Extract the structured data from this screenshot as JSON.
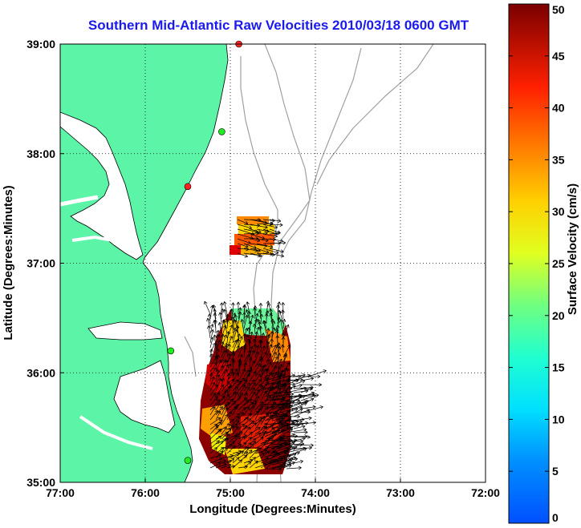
{
  "title": "Southern Mid-Atlantic Raw Velocities 2010/03/18 0600 GMT",
  "map": {
    "xlabel": "Longitude (Degrees:Minutes)",
    "ylabel": "Latitude (Degrees:Minutes)",
    "x_ticks": [
      "77:00",
      "76:00",
      "75:00",
      "74:00",
      "73:00",
      "72:00"
    ],
    "y_ticks": [
      "39:00",
      "38:00",
      "37:00",
      "36:00",
      "35:00"
    ],
    "lon_range": [
      -77,
      -72
    ],
    "lat_range": [
      35,
      39
    ],
    "grid": "dotted",
    "colors": {
      "land": "#5cf5a8",
      "coast": "#000000",
      "bathymetry": "#a0a0a0",
      "vectors": "#000000"
    },
    "station_markers": [
      {
        "lon": -74.9,
        "lat": 39.0,
        "color": "#ff2020"
      },
      {
        "lon": -75.1,
        "lat": 38.2,
        "color": "#20ee20"
      },
      {
        "lon": -75.5,
        "lat": 37.7,
        "color": "#ff2020"
      },
      {
        "lon": -75.7,
        "lat": 36.2,
        "color": "#20ee20"
      },
      {
        "lon": -75.5,
        "lat": 35.2,
        "color": "#20ee20"
      }
    ]
  },
  "colorbar": {
    "label": "Surface Velocity (cm/s)",
    "ticks": [
      "0",
      "5",
      "10",
      "15",
      "20",
      "25",
      "30",
      "35",
      "40",
      "45",
      "50"
    ],
    "range": [
      0,
      50
    ],
    "colormap": "jet"
  }
}
